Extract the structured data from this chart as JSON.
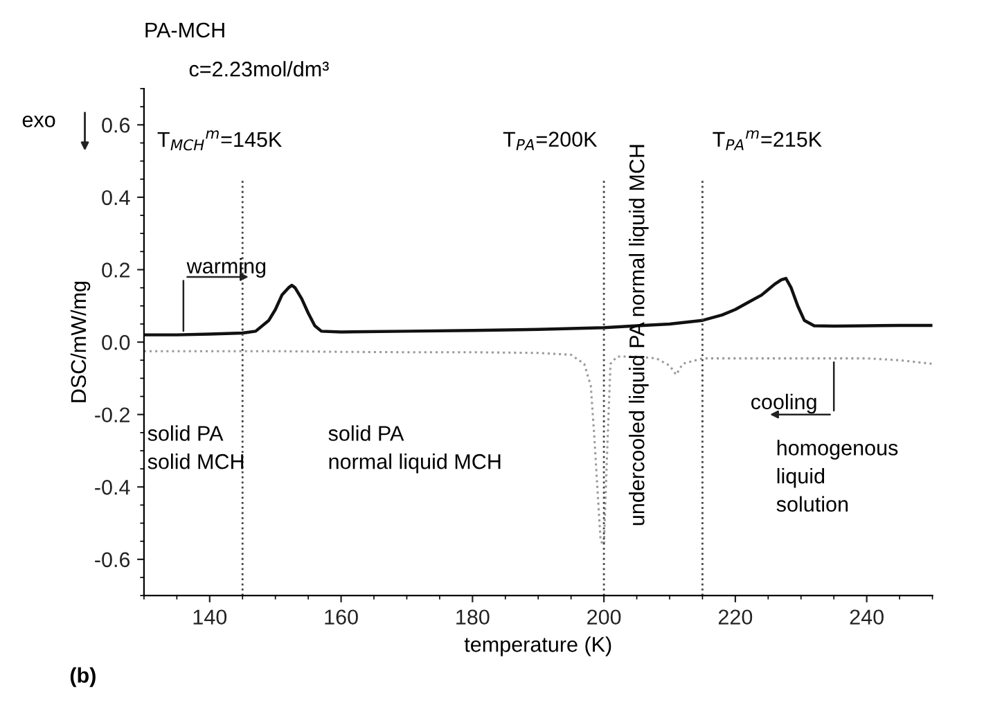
{
  "chart_data": {
    "type": "line",
    "title": "PA-MCH",
    "subtitle": "c=2.23mol/dm³",
    "xlabel": "temperature (K)",
    "ylabel": "DSC/mW/mg",
    "xlim": [
      130,
      250
    ],
    "xticks": [
      140,
      160,
      180,
      200,
      220,
      240
    ],
    "ylim": [
      -0.7,
      0.7
    ],
    "yticks": [
      {
        "value": -0.6,
        "label": "-0.6"
      },
      {
        "value": -0.4,
        "label": "-0.4"
      },
      {
        "value": -0.2,
        "label": "-0.2"
      },
      {
        "value": 0.0,
        "label": "0.0"
      },
      {
        "value": 0.2,
        "label": "0.2"
      },
      {
        "value": 0.4,
        "label": "0.4"
      },
      {
        "value": 0.6,
        "label": "0.6"
      }
    ],
    "series": [
      {
        "color": "#111111",
        "line_style": "solid",
        "x": [
          130,
          135,
          140,
          145,
          147,
          149,
          150,
          151,
          152,
          152.5,
          153,
          154,
          155,
          156,
          157,
          160,
          170,
          180,
          190,
          200,
          205,
          210,
          215,
          218,
          220,
          222,
          224,
          225,
          226,
          227,
          227.7,
          228.5,
          229.5,
          230.5,
          232,
          235,
          240,
          245,
          250
        ],
        "values": [
          0.02,
          0.02,
          0.022,
          0.025,
          0.03,
          0.06,
          0.09,
          0.13,
          0.15,
          0.157,
          0.15,
          0.12,
          0.08,
          0.045,
          0.03,
          0.028,
          0.03,
          0.032,
          0.035,
          0.04,
          0.045,
          0.05,
          0.06,
          0.075,
          0.09,
          0.11,
          0.13,
          0.145,
          0.16,
          0.172,
          0.176,
          0.15,
          0.1,
          0.06,
          0.045,
          0.044,
          0.045,
          0.046,
          0.046
        ]
      },
      {
        "color": "#9a9a9a",
        "line_style": "dotted",
        "x": [
          130,
          140,
          150,
          160,
          170,
          180,
          190,
          195,
          197,
          198,
          198.5,
          199,
          199.5,
          200,
          200.5,
          201,
          202,
          205,
          208,
          210,
          211,
          212,
          215,
          220,
          230,
          240,
          245,
          250
        ],
        "values": [
          -0.025,
          -0.025,
          -0.025,
          -0.027,
          -0.028,
          -0.028,
          -0.03,
          -0.035,
          -0.06,
          -0.12,
          -0.25,
          -0.4,
          -0.55,
          -0.56,
          -0.3,
          -0.06,
          -0.04,
          -0.04,
          -0.045,
          -0.065,
          -0.09,
          -0.06,
          -0.045,
          -0.045,
          -0.045,
          -0.045,
          -0.05,
          -0.06
        ]
      }
    ],
    "ref_lines": [
      {
        "axis": "x",
        "value": 145,
        "label": "T$_{MCH}$$^{m}$=145K",
        "line_style": "dotted",
        "color": "#444444"
      },
      {
        "axis": "x",
        "value": 200,
        "label": "T$_{PA}$=200K",
        "line_style": "dotted",
        "color": "#444444"
      },
      {
        "axis": "x",
        "value": 215,
        "label": "T$_{PA}$$^{m}$=215K",
        "line_style": "dotted",
        "color": "#444444"
      }
    ],
    "annotations": [
      "exo",
      {
        "text": "warming",
        "x": 136,
        "y": 0.02
      },
      {
        "text": "cooling",
        "x": 235,
        "y": -0.045
      },
      "solid PA\nsolid MCH",
      "solid PA\nnormal liquid MCH",
      "undercooled liquid PA normal liquid MCH",
      "homogenous\nliquid\nsolution",
      "(b)"
    ],
    "grid": false
  }
}
